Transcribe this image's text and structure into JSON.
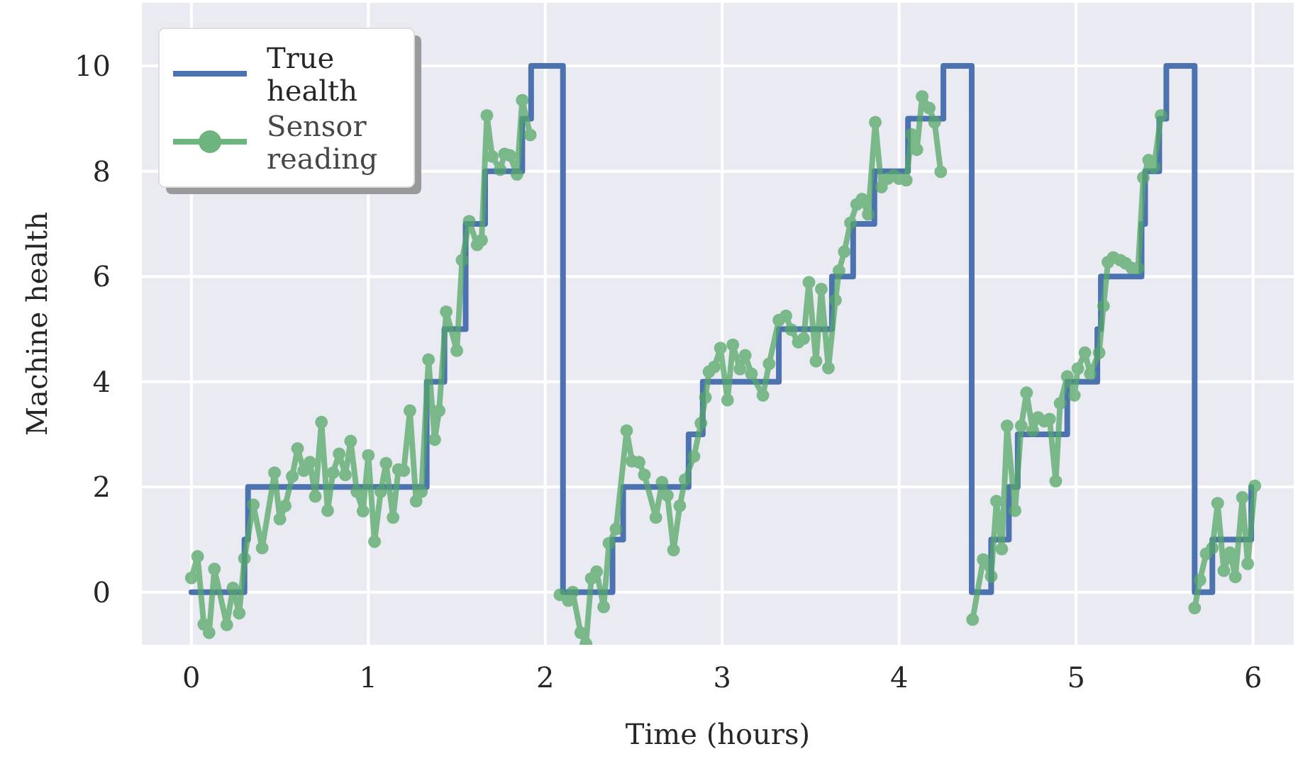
{
  "chart_data": {
    "type": "line",
    "xlabel": "Time (hours)",
    "ylabel": "Machine health",
    "xlim": [
      -0.28,
      6.23
    ],
    "ylim": [
      -1,
      11.2
    ],
    "xticks": [
      0,
      1,
      2,
      3,
      4,
      5,
      6
    ],
    "yticks": [
      0,
      2,
      4,
      6,
      8,
      10
    ],
    "grid": true,
    "legend": "top left",
    "series": [
      {
        "name": "True health",
        "type": "step",
        "color": "#4c72b0",
        "marker": "none",
        "x": [
          0,
          0.3,
          0.32,
          1.33,
          1.43,
          1.55,
          1.66,
          1.87,
          1.92,
          2.1,
          2.38,
          2.44,
          2.81,
          2.89,
          3.32,
          3.62,
          3.74,
          3.86,
          4.05,
          4.25,
          4.41,
          4.52,
          4.62,
          4.67,
          4.95,
          5.12,
          5.14,
          5.37,
          5.39,
          5.47,
          5.51,
          5.67,
          5.77,
          5.99
        ],
        "values": [
          0,
          1,
          2,
          4,
          5,
          7,
          8,
          9,
          10,
          0,
          1,
          2,
          3,
          4,
          5,
          6,
          7,
          8,
          9,
          10,
          0,
          1,
          2,
          3,
          4,
          5,
          6,
          7,
          8,
          9,
          10,
          0,
          1,
          2
        ]
      },
      {
        "name": "Sensor reading",
        "color": "#55a868",
        "marker": "circle",
        "x": [
          0,
          0.035,
          0.07,
          0.1,
          0.13,
          0.2,
          0.235,
          0.27,
          0.3,
          0.35,
          0.4,
          0.47,
          0.5,
          0.53,
          0.57,
          0.6,
          0.635,
          0.67,
          0.7,
          0.735,
          0.77,
          0.8,
          0.835,
          0.87,
          0.9,
          0.935,
          0.97,
          1.0,
          1.035,
          1.07,
          1.1,
          1.14,
          1.17,
          1.2,
          1.235,
          1.27,
          1.3,
          1.34,
          1.375,
          1.4,
          1.44,
          1.5,
          1.53,
          1.57,
          1.615,
          1.64,
          1.67,
          1.7,
          1.745,
          1.77,
          1.8,
          1.84,
          1.87,
          1.915,
          2.0,
          2.083,
          2.13,
          2.155,
          2.2,
          2.23,
          2.26,
          2.29,
          2.33,
          2.36,
          2.4,
          2.46,
          2.49,
          2.53,
          2.56,
          2.625,
          2.66,
          2.69,
          2.725,
          2.76,
          2.79,
          2.84,
          2.88,
          2.905,
          2.925,
          2.955,
          2.99,
          3.03,
          3.06,
          3.1,
          3.13,
          3.165,
          3.23,
          3.265,
          3.32,
          3.36,
          3.39,
          3.43,
          3.46,
          3.49,
          3.53,
          3.56,
          3.6,
          3.64,
          3.66,
          3.69,
          3.725,
          3.76,
          3.79,
          3.825,
          3.865,
          3.9,
          3.935,
          3.97,
          4.0,
          4.04,
          4.07,
          4.1,
          4.13,
          4.17,
          4.2,
          4.235,
          4.3,
          4.415,
          4.475,
          4.52,
          4.55,
          4.58,
          4.61,
          4.655,
          4.69,
          4.72,
          4.755,
          4.785,
          4.82,
          4.85,
          4.885,
          4.91,
          4.95,
          4.99,
          5.01,
          5.05,
          5.08,
          5.13,
          5.155,
          5.18,
          5.21,
          5.25,
          5.28,
          5.315,
          5.35,
          5.38,
          5.41,
          5.44,
          5.48,
          5.6,
          5.67,
          5.7,
          5.735,
          5.77,
          5.8,
          5.835,
          5.87,
          5.9,
          5.94,
          5.97,
          6.01
        ],
        "values": [
          0.27,
          0.68,
          -0.61,
          -0.77,
          0.44,
          -0.62,
          0.08,
          -0.4,
          0.64,
          1.66,
          0.84,
          2.27,
          1.39,
          1.64,
          2.2,
          2.73,
          2.31,
          2.47,
          1.82,
          3.23,
          1.55,
          2.27,
          2.63,
          2.23,
          2.87,
          1.91,
          1.54,
          2.6,
          0.96,
          1.91,
          2.45,
          1.42,
          2.33,
          2.31,
          3.45,
          1.73,
          1.91,
          4.42,
          2.9,
          3.45,
          5.33,
          4.59,
          6.31,
          7.05,
          6.6,
          6.69,
          9.06,
          8.28,
          8.03,
          8.33,
          8.3,
          7.94,
          9.35,
          8.69,
          null,
          -0.05,
          -0.16,
          0,
          -0.77,
          -0.98,
          0.26,
          0.39,
          -0.28,
          0.93,
          1.2,
          3.07,
          2.49,
          2.47,
          2.23,
          1.42,
          2.09,
          1.84,
          0.8,
          1.64,
          2.14,
          2.58,
          3.21,
          3.7,
          4.19,
          4.28,
          4.64,
          3.65,
          4.7,
          4.24,
          4.5,
          4.15,
          3.74,
          4.34,
          5.17,
          5.25,
          4.99,
          4.75,
          4.82,
          5.89,
          4.39,
          5.76,
          4.26,
          5.55,
          6.11,
          6.47,
          7.02,
          7.37,
          7.47,
          7.18,
          8.93,
          7.7,
          7.86,
          7.92,
          7.86,
          7.83,
          8.7,
          8.41,
          9.42,
          9.2,
          8.93,
          7.99,
          null,
          -0.52,
          0.62,
          0.3,
          1.73,
          0.82,
          3.16,
          1.55,
          3.16,
          3.79,
          3.07,
          3.32,
          3.25,
          3.29,
          2.11,
          3.59,
          4.1,
          3.74,
          4.25,
          4.55,
          4.15,
          4.55,
          5.44,
          6.27,
          6.36,
          6.31,
          6.25,
          6.16,
          6.16,
          7.88,
          8.21,
          8.08,
          9.06,
          null,
          -0.3,
          0.23,
          0.73,
          0.84,
          1.69,
          0.41,
          0.75,
          0.29,
          1.8,
          0.54,
          2.02
        ]
      }
    ]
  }
}
